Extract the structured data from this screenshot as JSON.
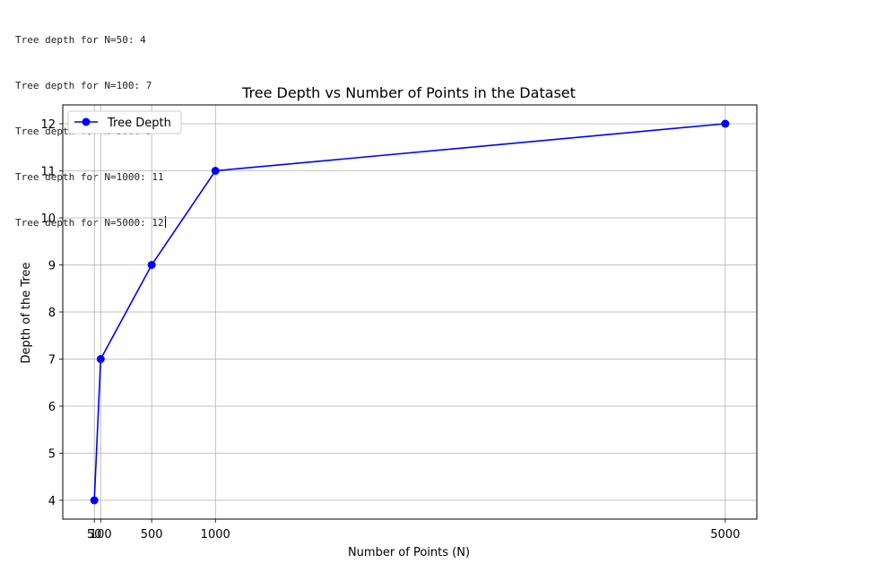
{
  "console": {
    "lines": [
      "Tree depth for N=50: 4",
      "Tree depth for N=100: 7",
      "Tree depth for N=500: 9",
      "Tree depth for N=1000: 11",
      "Tree depth for N=5000: 12"
    ]
  },
  "chart_data": {
    "type": "line",
    "title": "Tree Depth vs Number of Points in the Dataset",
    "xlabel": "Number of Points (N)",
    "ylabel": "Depth of the Tree",
    "x": [
      50,
      100,
      500,
      1000,
      5000
    ],
    "series": [
      {
        "name": "Tree Depth",
        "values": [
          4,
          7,
          9,
          11,
          12
        ],
        "color": "#0000ff",
        "marker": "circle"
      }
    ],
    "xticks": [
      50,
      100,
      500,
      1000,
      5000
    ],
    "yticks": [
      4,
      5,
      6,
      7,
      8,
      9,
      10,
      11,
      12
    ],
    "xlim": [
      -197.5,
      5247.5
    ],
    "ylim": [
      3.6,
      12.4
    ],
    "grid": true,
    "legend": "top-left"
  }
}
